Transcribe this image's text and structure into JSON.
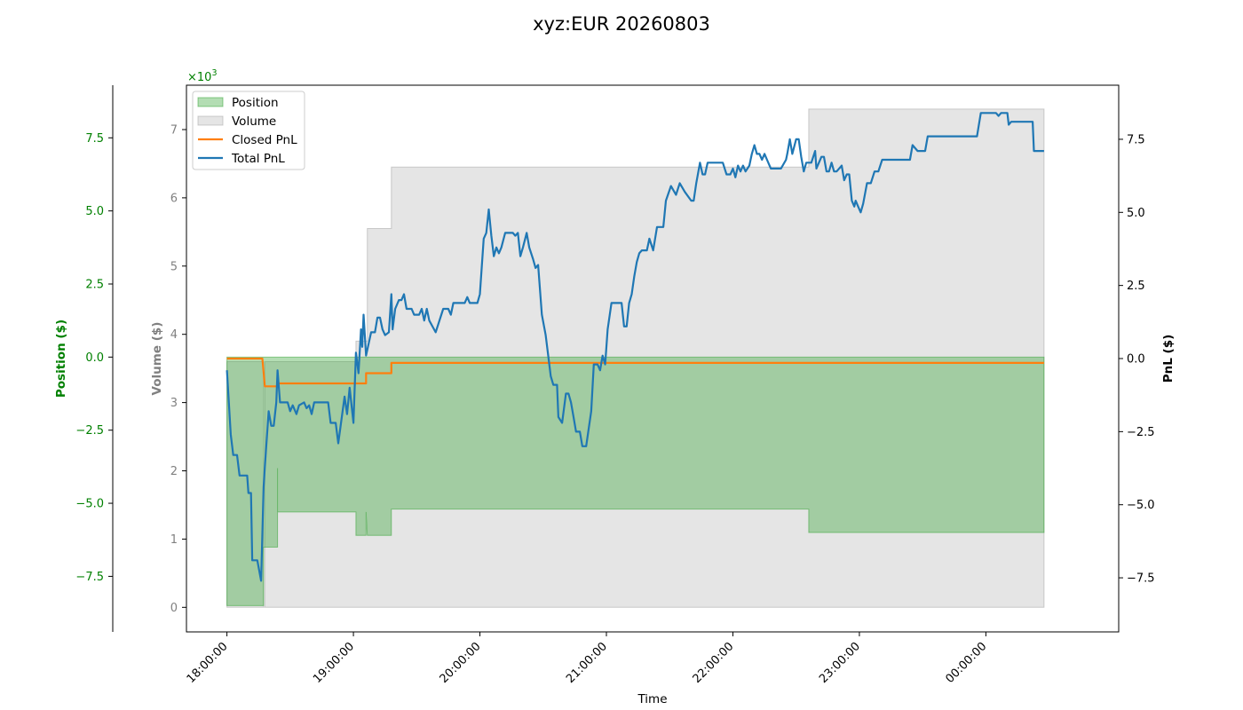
{
  "chart_data": {
    "type": "line",
    "title": "xyz:EUR 20260803",
    "xlabel": "Time",
    "position_axis": {
      "label": "Position ($)",
      "color": "#008000",
      "multiplier": "×10",
      "multiplier_exponent": "3",
      "ylim": [
        -9.4,
        9.3
      ],
      "ticks": [
        -7.5,
        -5.0,
        -2.5,
        0.0,
        2.5,
        5.0,
        7.5
      ],
      "tick_labels": [
        "−7.5",
        "−5.0",
        "−2.5",
        "0.0",
        "2.5",
        "5.0",
        "7.5"
      ]
    },
    "volume_axis": {
      "label": "Volume ($)",
      "color": "#808080",
      "multiplier": "×10",
      "multiplier_exponent": "3",
      "ylim": [
        -0.36,
        7.65
      ],
      "ticks": [
        0,
        1,
        2,
        3,
        4,
        5,
        6,
        7
      ],
      "tick_labels": [
        "0",
        "1",
        "2",
        "3",
        "4",
        "5",
        "6",
        "7"
      ]
    },
    "pnl_axis": {
      "label": "PnL ($)",
      "color": "#000000",
      "ylim": [
        -9.35,
        9.35
      ],
      "ticks": [
        -7.5,
        -5.0,
        -2.5,
        0.0,
        2.5,
        5.0,
        7.5
      ],
      "tick_labels": [
        "−7.5",
        "−5.0",
        "−2.5",
        "0.0",
        "2.5",
        "5.0",
        "7.5"
      ]
    },
    "x_axis": {
      "range_hours": [
        17.68,
        25.05
      ],
      "ticks": [
        18,
        19,
        20,
        21,
        22,
        23,
        24
      ],
      "tick_labels": [
        "18:00:00",
        "19:00:00",
        "20:00:00",
        "21:00:00",
        "22:00:00",
        "23:00:00",
        "00:00:00"
      ]
    },
    "legend": {
      "placement": "top-left",
      "entries": [
        {
          "name": "Position",
          "type": "patch",
          "color": "#2ca02c"
        },
        {
          "name": "Volume",
          "type": "patch",
          "color": "#c8c8c8"
        },
        {
          "name": "Closed PnL",
          "type": "line",
          "color": "#ff7f0e"
        },
        {
          "name": "Total PnL",
          "type": "line",
          "color": "#1f77b4"
        }
      ]
    },
    "series": [
      {
        "name": "Position",
        "axis": "position",
        "color": "#2ca02c",
        "points": [
          [
            18.0,
            0
          ],
          [
            18.0,
            -8.5
          ],
          [
            18.29,
            -8.5
          ],
          [
            18.29,
            -6.5
          ],
          [
            18.4,
            -6.5
          ],
          [
            18.4,
            -3.8
          ],
          [
            18.4,
            -5.3
          ],
          [
            19.0,
            -5.3
          ],
          [
            19.02,
            -5.3
          ],
          [
            19.02,
            -6.1
          ],
          [
            19.1,
            -6.1
          ],
          [
            19.1,
            -5.3
          ],
          [
            19.11,
            -6.1
          ],
          [
            19.3,
            -6.1
          ],
          [
            19.3,
            -5.2
          ],
          [
            22.6,
            -5.2
          ],
          [
            22.6,
            -6.0
          ],
          [
            24.46,
            -6.0
          ],
          [
            24.46,
            0
          ]
        ]
      },
      {
        "name": "Volume",
        "axis": "volume",
        "color": "#c8c8c8",
        "points": [
          [
            18.0,
            0
          ],
          [
            18.0,
            3.6
          ],
          [
            18.29,
            3.6
          ],
          [
            18.29,
            0
          ],
          [
            18.3,
            0
          ],
          [
            18.3,
            3.6
          ],
          [
            19.02,
            3.6
          ],
          [
            19.02,
            3.9
          ],
          [
            19.11,
            3.9
          ],
          [
            19.11,
            5.55
          ],
          [
            19.3,
            5.55
          ],
          [
            19.3,
            6.45
          ],
          [
            22.6,
            6.45
          ],
          [
            22.6,
            7.3
          ],
          [
            24.46,
            7.3
          ],
          [
            24.46,
            0
          ]
        ]
      },
      {
        "name": "Closed PnL",
        "axis": "pnl",
        "color": "#ff7f0e",
        "points": [
          [
            18.0,
            0.0
          ],
          [
            18.28,
            0.0
          ],
          [
            18.3,
            -0.95
          ],
          [
            18.4,
            -0.95
          ],
          [
            18.4,
            -0.85
          ],
          [
            19.1,
            -0.85
          ],
          [
            19.1,
            -0.5
          ],
          [
            19.3,
            -0.5
          ],
          [
            19.3,
            -0.15
          ],
          [
            24.46,
            -0.15
          ]
        ]
      },
      {
        "name": "Total PnL",
        "axis": "pnl",
        "color": "#1f77b4",
        "points": [
          [
            18.0,
            -0.4
          ],
          [
            18.03,
            -2.6
          ],
          [
            18.05,
            -3.3
          ],
          [
            18.08,
            -3.3
          ],
          [
            18.1,
            -4.0
          ],
          [
            18.16,
            -4.0
          ],
          [
            18.17,
            -4.6
          ],
          [
            18.19,
            -4.6
          ],
          [
            18.2,
            -6.9
          ],
          [
            18.24,
            -6.9
          ],
          [
            18.27,
            -7.6
          ],
          [
            18.29,
            -4.4
          ],
          [
            18.3,
            -3.7
          ],
          [
            18.33,
            -1.8
          ],
          [
            18.35,
            -2.3
          ],
          [
            18.37,
            -2.3
          ],
          [
            18.39,
            -1.5
          ],
          [
            18.4,
            -0.4
          ],
          [
            18.42,
            -1.5
          ],
          [
            18.48,
            -1.5
          ],
          [
            18.5,
            -1.8
          ],
          [
            18.52,
            -1.6
          ],
          [
            18.55,
            -1.9
          ],
          [
            18.57,
            -1.6
          ],
          [
            18.61,
            -1.5
          ],
          [
            18.63,
            -1.7
          ],
          [
            18.65,
            -1.6
          ],
          [
            18.67,
            -1.9
          ],
          [
            18.69,
            -1.5
          ],
          [
            18.8,
            -1.5
          ],
          [
            18.82,
            -2.2
          ],
          [
            18.86,
            -2.2
          ],
          [
            18.88,
            -2.9
          ],
          [
            18.93,
            -1.3
          ],
          [
            18.95,
            -1.9
          ],
          [
            18.97,
            -1.0
          ],
          [
            19.0,
            -2.2
          ],
          [
            19.02,
            0.2
          ],
          [
            19.04,
            -0.5
          ],
          [
            19.06,
            1.0
          ],
          [
            19.07,
            0.4
          ],
          [
            19.08,
            1.5
          ],
          [
            19.1,
            0.1
          ],
          [
            19.14,
            0.9
          ],
          [
            19.17,
            0.9
          ],
          [
            19.19,
            1.4
          ],
          [
            19.21,
            1.4
          ],
          [
            19.23,
            1.0
          ],
          [
            19.25,
            0.8
          ],
          [
            19.28,
            0.9
          ],
          [
            19.3,
            2.2
          ],
          [
            19.31,
            1.0
          ],
          [
            19.33,
            1.7
          ],
          [
            19.36,
            2.0
          ],
          [
            19.38,
            2.0
          ],
          [
            19.4,
            2.2
          ],
          [
            19.42,
            1.7
          ],
          [
            19.44,
            1.7
          ],
          [
            19.46,
            1.7
          ],
          [
            19.48,
            1.5
          ],
          [
            19.52,
            1.5
          ],
          [
            19.54,
            1.7
          ],
          [
            19.56,
            1.3
          ],
          [
            19.58,
            1.7
          ],
          [
            19.6,
            1.3
          ],
          [
            19.65,
            0.9
          ],
          [
            19.71,
            1.7
          ],
          [
            19.75,
            1.7
          ],
          [
            19.77,
            1.5
          ],
          [
            19.79,
            1.9
          ],
          [
            19.88,
            1.9
          ],
          [
            19.9,
            2.1
          ],
          [
            19.92,
            1.9
          ],
          [
            19.98,
            1.9
          ],
          [
            20.0,
            2.2
          ],
          [
            20.03,
            4.1
          ],
          [
            20.05,
            4.3
          ],
          [
            20.07,
            5.1
          ],
          [
            20.09,
            4.2
          ],
          [
            20.11,
            3.5
          ],
          [
            20.13,
            3.8
          ],
          [
            20.15,
            3.6
          ],
          [
            20.17,
            3.8
          ],
          [
            20.2,
            4.3
          ],
          [
            20.26,
            4.3
          ],
          [
            20.28,
            4.2
          ],
          [
            20.3,
            4.3
          ],
          [
            20.32,
            3.5
          ],
          [
            20.34,
            3.8
          ],
          [
            20.37,
            4.3
          ],
          [
            20.39,
            3.8
          ],
          [
            20.42,
            3.4
          ],
          [
            20.44,
            3.1
          ],
          [
            20.46,
            3.2
          ],
          [
            20.49,
            1.5
          ],
          [
            20.52,
            0.8
          ],
          [
            20.56,
            -0.6
          ],
          [
            20.58,
            -0.9
          ],
          [
            20.61,
            -0.9
          ],
          [
            20.62,
            -2.0
          ],
          [
            20.65,
            -2.2
          ],
          [
            20.68,
            -1.2
          ],
          [
            20.7,
            -1.2
          ],
          [
            20.72,
            -1.5
          ],
          [
            20.74,
            -2.0
          ],
          [
            20.76,
            -2.5
          ],
          [
            20.79,
            -2.5
          ],
          [
            20.81,
            -3.0
          ],
          [
            20.84,
            -3.0
          ],
          [
            20.88,
            -1.8
          ],
          [
            20.9,
            -0.2
          ],
          [
            20.93,
            -0.2
          ],
          [
            20.95,
            -0.4
          ],
          [
            20.97,
            0.1
          ],
          [
            20.99,
            -0.2
          ],
          [
            21.01,
            1.0
          ],
          [
            21.04,
            1.9
          ],
          [
            21.07,
            1.9
          ],
          [
            21.12,
            1.9
          ],
          [
            21.14,
            1.1
          ],
          [
            21.16,
            1.1
          ],
          [
            21.18,
            1.9
          ],
          [
            21.2,
            2.2
          ],
          [
            21.22,
            2.8
          ],
          [
            21.24,
            3.3
          ],
          [
            21.26,
            3.6
          ],
          [
            21.28,
            3.7
          ],
          [
            21.32,
            3.7
          ],
          [
            21.34,
            4.1
          ],
          [
            21.37,
            3.7
          ],
          [
            21.4,
            4.5
          ],
          [
            21.45,
            4.5
          ],
          [
            21.47,
            5.4
          ],
          [
            21.51,
            5.9
          ],
          [
            21.55,
            5.6
          ],
          [
            21.58,
            6.0
          ],
          [
            21.62,
            5.7
          ],
          [
            21.67,
            5.4
          ],
          [
            21.69,
            5.4
          ],
          [
            21.71,
            6.0
          ],
          [
            21.74,
            6.7
          ],
          [
            21.76,
            6.3
          ],
          [
            21.78,
            6.3
          ],
          [
            21.8,
            6.7
          ],
          [
            21.92,
            6.7
          ],
          [
            21.95,
            6.3
          ],
          [
            21.98,
            6.3
          ],
          [
            22.0,
            6.5
          ],
          [
            22.02,
            6.2
          ],
          [
            22.04,
            6.6
          ],
          [
            22.06,
            6.4
          ],
          [
            22.08,
            6.6
          ],
          [
            22.1,
            6.4
          ],
          [
            22.13,
            6.6
          ],
          [
            22.15,
            7.0
          ],
          [
            22.17,
            7.3
          ],
          [
            22.19,
            7.0
          ],
          [
            22.21,
            7.0
          ],
          [
            22.23,
            6.8
          ],
          [
            22.25,
            7.0
          ],
          [
            22.27,
            6.8
          ],
          [
            22.3,
            6.5
          ],
          [
            22.34,
            6.5
          ],
          [
            22.36,
            6.5
          ],
          [
            22.38,
            6.5
          ],
          [
            22.42,
            6.8
          ],
          [
            22.43,
            7.0
          ],
          [
            22.45,
            7.5
          ],
          [
            22.47,
            7.0
          ],
          [
            22.5,
            7.5
          ],
          [
            22.52,
            7.5
          ],
          [
            22.54,
            6.9
          ],
          [
            22.56,
            6.4
          ],
          [
            22.58,
            6.7
          ],
          [
            22.62,
            6.7
          ],
          [
            22.65,
            7.1
          ],
          [
            22.66,
            6.5
          ],
          [
            22.7,
            6.9
          ],
          [
            22.72,
            6.9
          ],
          [
            22.74,
            6.4
          ],
          [
            22.76,
            6.4
          ],
          [
            22.78,
            6.7
          ],
          [
            22.8,
            6.4
          ],
          [
            22.82,
            6.4
          ],
          [
            22.86,
            6.6
          ],
          [
            22.88,
            6.1
          ],
          [
            22.9,
            6.3
          ],
          [
            22.92,
            6.3
          ],
          [
            22.94,
            5.4
          ],
          [
            22.96,
            5.2
          ],
          [
            22.97,
            5.4
          ],
          [
            22.99,
            5.2
          ],
          [
            23.01,
            5.0
          ],
          [
            23.03,
            5.3
          ],
          [
            23.06,
            6.0
          ],
          [
            23.09,
            6.0
          ],
          [
            23.12,
            6.4
          ],
          [
            23.15,
            6.4
          ],
          [
            23.18,
            6.8
          ],
          [
            23.22,
            6.8
          ],
          [
            23.4,
            6.8
          ],
          [
            23.42,
            7.3
          ],
          [
            23.46,
            7.1
          ],
          [
            23.52,
            7.1
          ],
          [
            23.54,
            7.6
          ],
          [
            23.93,
            7.6
          ],
          [
            23.96,
            8.4
          ],
          [
            24.08,
            8.4
          ],
          [
            24.1,
            8.3
          ],
          [
            24.12,
            8.4
          ],
          [
            24.17,
            8.4
          ],
          [
            24.18,
            8.0
          ],
          [
            24.2,
            8.1
          ],
          [
            24.37,
            8.1
          ],
          [
            24.38,
            7.1
          ],
          [
            24.46,
            7.1
          ]
        ]
      }
    ]
  }
}
